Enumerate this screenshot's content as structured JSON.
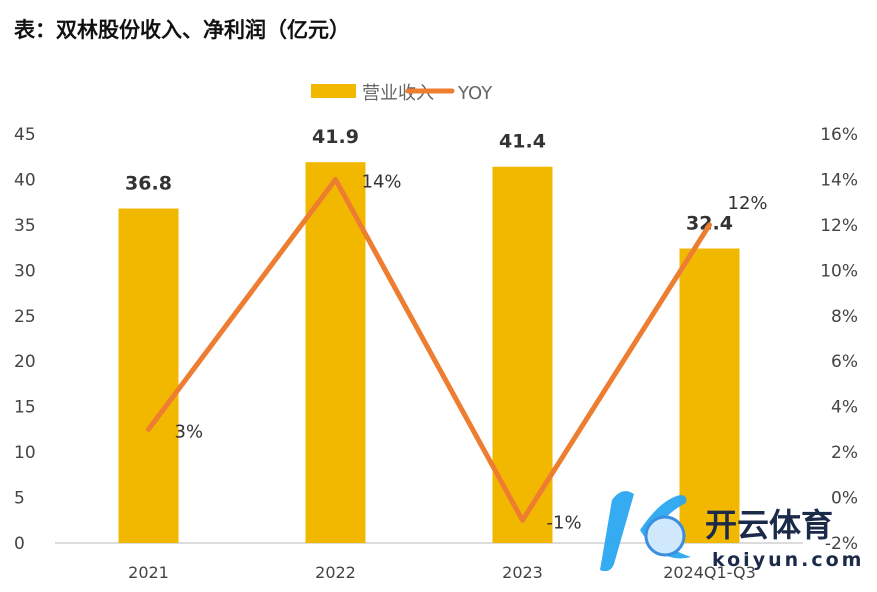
{
  "title": "表：双林股份收入、净利润（亿元）",
  "chart_data": {
    "type": "bar+line",
    "categories": [
      "2021",
      "2022",
      "2023",
      "2024Q1-Q3"
    ],
    "series": [
      {
        "name": "营业收入",
        "type": "bar",
        "axis": "left",
        "color": "#F2B800",
        "values": [
          36.8,
          41.9,
          41.4,
          32.4
        ],
        "labels": [
          "36.8",
          "41.9",
          "41.4",
          "32.4"
        ]
      },
      {
        "name": "YOY",
        "type": "line",
        "axis": "right",
        "color": "#ED7D31",
        "values": [
          3,
          14,
          -1,
          12
        ],
        "labels": [
          "3%",
          "14%",
          "-1%",
          "12%"
        ]
      }
    ],
    "left_axis": {
      "min": 0,
      "max": 45,
      "ticks": [
        "0",
        "5",
        "10",
        "15",
        "20",
        "25",
        "30",
        "35",
        "40",
        "45"
      ]
    },
    "right_axis": {
      "min": -2,
      "max": 16,
      "ticks": [
        "-2%",
        "0%",
        "2%",
        "4%",
        "6%",
        "8%",
        "10%",
        "12%",
        "14%",
        "16%"
      ]
    },
    "legend": "top-center",
    "grid": false
  },
  "watermark": {
    "text": "开云体育",
    "url_text": "koiyun.com"
  }
}
